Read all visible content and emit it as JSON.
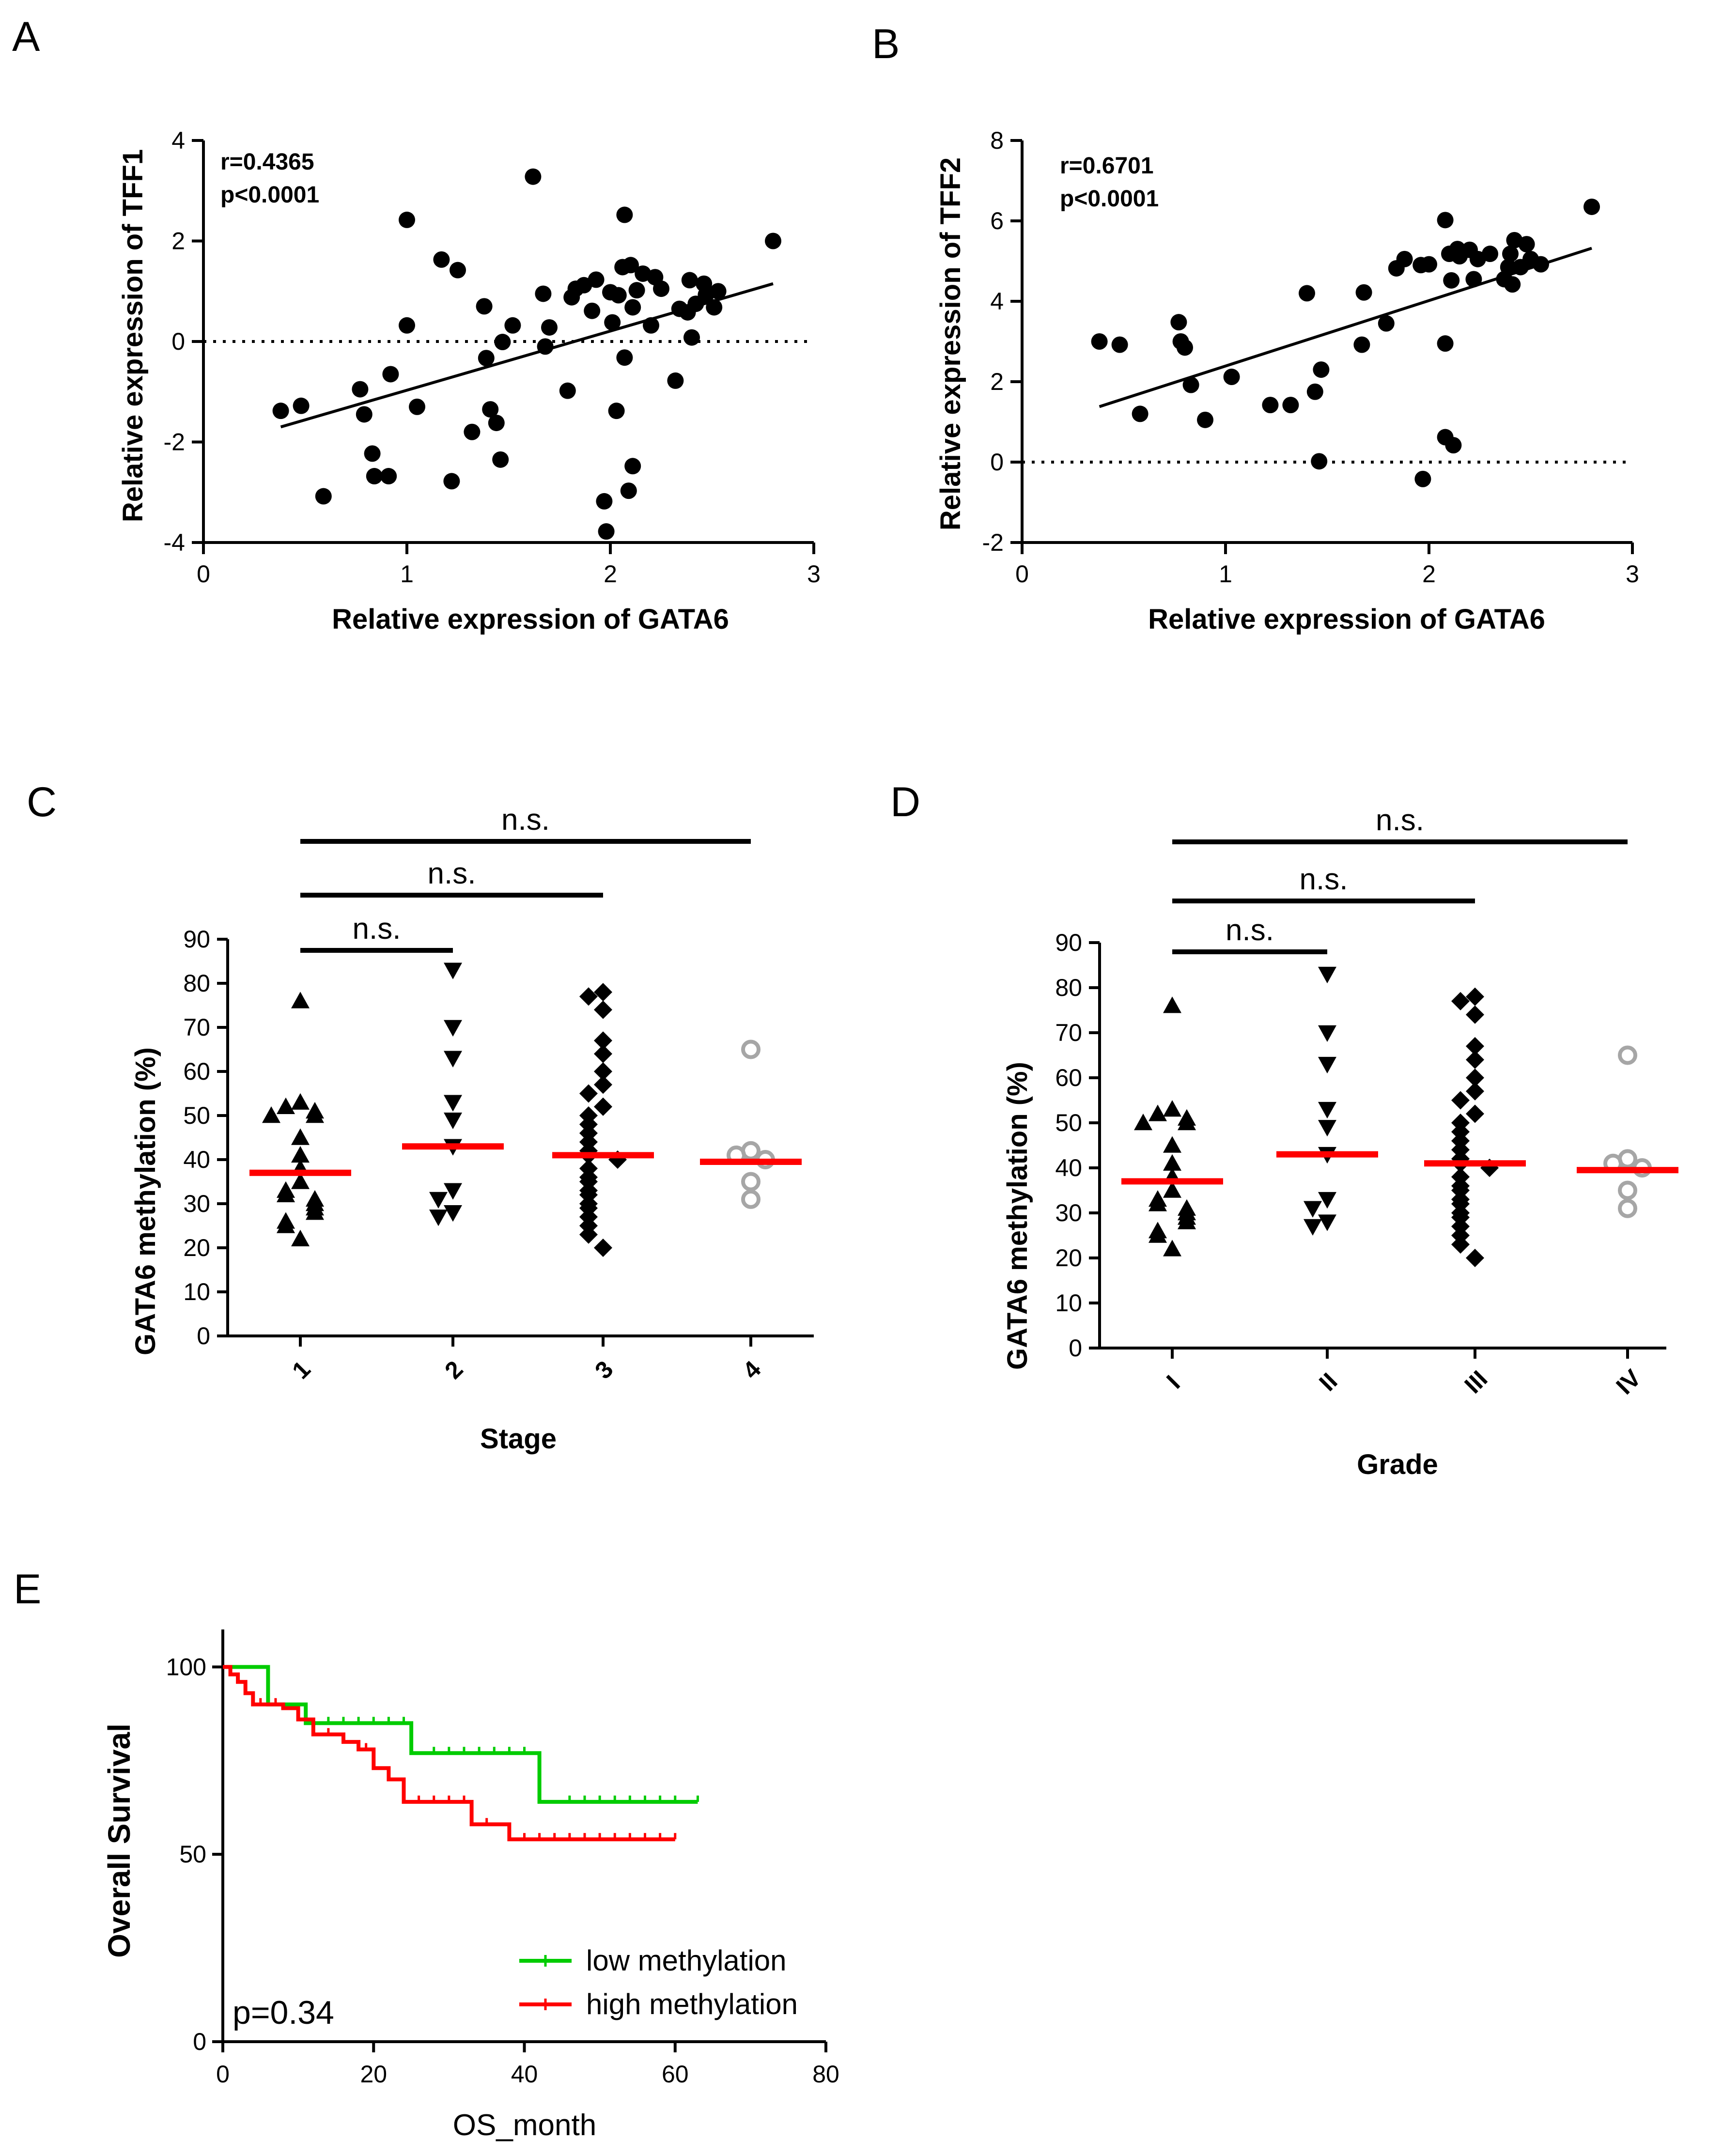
{
  "colors": {
    "axis": "#000000",
    "point": "#000000",
    "mean": "#ff0000",
    "stage4": "#a6a6a6",
    "low": "#00cc00",
    "high": "#ff0000"
  },
  "chart_data": [
    {
      "id": "A",
      "type": "scatter",
      "panel_label": "A",
      "xlabel": "Relative expression of GATA6",
      "ylabel": "Relative expression of TFF1",
      "xlim": [
        0,
        3
      ],
      "ylim": [
        -4,
        4
      ],
      "xticks": [
        "0",
        "1",
        "2",
        "3"
      ],
      "yticks": [
        "-4",
        "-2",
        "0",
        "2",
        "4"
      ],
      "stat_r": "r=0.4365",
      "stat_p": "p<0.0001",
      "reference_line": 0,
      "fit_line": {
        "x": [
          0.38,
          2.8
        ],
        "y": [
          -1.7,
          1.15
        ]
      },
      "points": [
        [
          0.38,
          -1.38
        ],
        [
          0.48,
          -1.28
        ],
        [
          0.59,
          -3.08
        ],
        [
          0.77,
          -0.95
        ],
        [
          0.79,
          -1.45
        ],
        [
          0.83,
          -2.23
        ],
        [
          0.84,
          -2.68
        ],
        [
          0.91,
          -2.68
        ],
        [
          0.92,
          -0.65
        ],
        [
          1.0,
          2.42
        ],
        [
          1.0,
          0.32
        ],
        [
          1.05,
          -1.3
        ],
        [
          1.17,
          1.63
        ],
        [
          1.22,
          -2.78
        ],
        [
          1.25,
          1.42
        ],
        [
          1.32,
          -1.8
        ],
        [
          1.38,
          0.7
        ],
        [
          1.39,
          -0.33
        ],
        [
          1.41,
          -1.35
        ],
        [
          1.44,
          -1.62
        ],
        [
          1.46,
          -2.35
        ],
        [
          1.47,
          -0.01
        ],
        [
          1.52,
          0.32
        ],
        [
          1.62,
          3.28
        ],
        [
          1.67,
          0.95
        ],
        [
          1.68,
          -0.1
        ],
        [
          1.7,
          0.28
        ],
        [
          1.79,
          -0.98
        ],
        [
          1.81,
          0.88
        ],
        [
          1.83,
          1.05
        ],
        [
          1.87,
          1.12
        ],
        [
          1.91,
          0.61
        ],
        [
          1.93,
          1.23
        ],
        [
          1.97,
          -3.18
        ],
        [
          1.98,
          -3.78
        ],
        [
          2.0,
          0.98
        ],
        [
          2.01,
          0.38
        ],
        [
          2.03,
          -1.38
        ],
        [
          2.04,
          0.92
        ],
        [
          2.06,
          1.48
        ],
        [
          2.07,
          2.52
        ],
        [
          2.07,
          -0.32
        ],
        [
          2.09,
          -2.97
        ],
        [
          2.1,
          1.52
        ],
        [
          2.11,
          -2.48
        ],
        [
          2.11,
          0.68
        ],
        [
          2.13,
          1.02
        ],
        [
          2.16,
          1.35
        ],
        [
          2.2,
          0.32
        ],
        [
          2.22,
          1.28
        ],
        [
          2.25,
          1.05
        ],
        [
          2.32,
          -0.78
        ],
        [
          2.34,
          0.65
        ],
        [
          2.38,
          0.58
        ],
        [
          2.39,
          1.22
        ],
        [
          2.4,
          0.08
        ],
        [
          2.42,
          0.75
        ],
        [
          2.46,
          1.15
        ],
        [
          2.47,
          0.93
        ],
        [
          2.51,
          0.68
        ],
        [
          2.53,
          1.0
        ],
        [
          2.8,
          2.0
        ]
      ]
    },
    {
      "id": "B",
      "type": "scatter",
      "panel_label": "B",
      "xlabel": "Relative expression of GATA6",
      "ylabel": "Relative expression of TFF2",
      "xlim": [
        0,
        3
      ],
      "ylim": [
        -2,
        8
      ],
      "xticks": [
        "0",
        "1",
        "2",
        "3"
      ],
      "yticks": [
        "-2",
        "0",
        "2",
        "4",
        "6",
        "8"
      ],
      "stat_r": "r=0.6701",
      "stat_p": "p<0.0001",
      "reference_line": 0,
      "fit_line": {
        "x": [
          0.38,
          2.8
        ],
        "y": [
          1.38,
          5.32
        ]
      },
      "points": [
        [
          0.38,
          3.0
        ],
        [
          0.48,
          2.92
        ],
        [
          0.58,
          1.2
        ],
        [
          0.77,
          3.48
        ],
        [
          0.78,
          3.0
        ],
        [
          0.8,
          2.85
        ],
        [
          0.83,
          1.92
        ],
        [
          0.9,
          1.05
        ],
        [
          1.03,
          2.12
        ],
        [
          1.22,
          1.42
        ],
        [
          1.32,
          1.42
        ],
        [
          1.4,
          4.2
        ],
        [
          1.44,
          1.75
        ],
        [
          1.46,
          0.02
        ],
        [
          1.47,
          2.3
        ],
        [
          1.67,
          2.92
        ],
        [
          1.68,
          4.22
        ],
        [
          1.79,
          3.45
        ],
        [
          1.84,
          4.82
        ],
        [
          1.88,
          5.05
        ],
        [
          1.96,
          4.9
        ],
        [
          1.97,
          -0.42
        ],
        [
          2.0,
          4.92
        ],
        [
          2.08,
          6.02
        ],
        [
          2.08,
          2.95
        ],
        [
          2.08,
          0.62
        ],
        [
          2.1,
          5.18
        ],
        [
          2.11,
          4.52
        ],
        [
          2.12,
          0.42
        ],
        [
          2.14,
          5.3
        ],
        [
          2.15,
          5.12
        ],
        [
          2.2,
          5.28
        ],
        [
          2.22,
          4.55
        ],
        [
          2.24,
          5.05
        ],
        [
          2.3,
          5.18
        ],
        [
          2.37,
          4.55
        ],
        [
          2.39,
          4.85
        ],
        [
          2.4,
          5.18
        ],
        [
          2.41,
          4.42
        ],
        [
          2.42,
          5.52
        ],
        [
          2.45,
          4.85
        ],
        [
          2.48,
          5.42
        ],
        [
          2.5,
          5.05
        ],
        [
          2.55,
          4.92
        ],
        [
          2.8,
          6.35
        ]
      ]
    },
    {
      "id": "C",
      "type": "dot",
      "panel_label": "C",
      "xlabel": "Stage",
      "ylabel": "GATA6 methylation (%)",
      "ylim": [
        0,
        90
      ],
      "yticks": [
        "0",
        "10",
        "20",
        "30",
        "40",
        "50",
        "60",
        "70",
        "80",
        "90"
      ],
      "groups": [
        {
          "label": "1",
          "marker": "triangle-up",
          "mean": 37,
          "values": [
            76,
            53,
            52,
            51,
            50,
            50,
            45,
            41,
            38,
            35,
            33,
            32,
            31,
            30,
            29,
            28,
            26,
            25,
            22
          ]
        },
        {
          "label": "2",
          "marker": "triangle-down",
          "mean": 43,
          "values": [
            83,
            70,
            63,
            53,
            49,
            43,
            33,
            31,
            28,
            27
          ]
        },
        {
          "label": "3",
          "marker": "diamond",
          "mean": 41,
          "values": [
            78,
            77,
            74,
            67,
            64,
            60,
            57,
            55,
            52,
            50,
            48,
            46,
            44,
            42,
            41,
            40,
            38,
            36,
            35,
            33,
            32,
            30,
            29,
            27,
            25,
            23,
            20
          ]
        },
        {
          "label": "4",
          "marker": "circle-open",
          "mean": 39.5,
          "values": [
            65,
            42,
            41,
            40,
            35,
            31
          ]
        }
      ],
      "comparisons": [
        {
          "from": 0,
          "to": 1,
          "label": "n.s."
        },
        {
          "from": 0,
          "to": 2,
          "label": "n.s."
        },
        {
          "from": 0,
          "to": 3,
          "label": "n.s."
        }
      ]
    },
    {
      "id": "D",
      "type": "dot",
      "panel_label": "D",
      "xlabel": "Grade",
      "ylabel": "GATA6 methylation (%)",
      "ylim": [
        0,
        90
      ],
      "yticks": [
        "0",
        "10",
        "20",
        "30",
        "40",
        "50",
        "60",
        "70",
        "80",
        "90"
      ],
      "groups": [
        {
          "label": "I",
          "marker": "triangle-up",
          "mean": 37,
          "values": [
            76,
            53,
            52,
            51,
            50,
            50,
            45,
            41,
            38,
            35,
            33,
            32,
            31,
            30,
            29,
            28,
            26,
            25,
            22
          ]
        },
        {
          "label": "II",
          "marker": "triangle-down",
          "mean": 43,
          "values": [
            83,
            70,
            63,
            53,
            49,
            43,
            33,
            31,
            28,
            27
          ]
        },
        {
          "label": "III",
          "marker": "diamond",
          "mean": 41,
          "values": [
            78,
            77,
            74,
            67,
            64,
            60,
            57,
            55,
            52,
            50,
            48,
            46,
            44,
            42,
            41,
            40,
            38,
            36,
            35,
            33,
            32,
            30,
            29,
            27,
            25,
            23,
            20
          ]
        },
        {
          "label": "IV",
          "marker": "circle-open",
          "mean": 39.5,
          "values": [
            65,
            42,
            41,
            40,
            35,
            31
          ]
        }
      ],
      "comparisons": [
        {
          "from": 0,
          "to": 1,
          "label": "n.s."
        },
        {
          "from": 0,
          "to": 2,
          "label": "n.s."
        },
        {
          "from": 0,
          "to": 3,
          "label": "n.s."
        }
      ]
    },
    {
      "id": "E",
      "type": "line",
      "panel_label": "E",
      "xlabel": "OS_month",
      "ylabel": "Overall Survival",
      "xlim": [
        0,
        80
      ],
      "ylim": [
        0,
        110
      ],
      "xticks": [
        "0",
        "20",
        "40",
        "60",
        "80"
      ],
      "yticks": [
        "0",
        "50",
        "100"
      ],
      "pvalue": "p=0.34",
      "series": [
        {
          "name": "low methylation",
          "color_key": "low",
          "steps": [
            [
              0,
              100
            ],
            [
              6,
              100
            ],
            [
              6,
              90
            ],
            [
              11,
              90
            ],
            [
              11,
              85
            ],
            [
              25,
              85
            ],
            [
              25,
              77
            ],
            [
              42,
              77
            ],
            [
              42,
              64
            ],
            [
              63,
              64
            ]
          ],
          "censors": [
            14,
            16,
            18,
            20,
            22,
            24,
            28,
            30,
            32,
            34,
            36,
            38,
            40,
            46,
            48,
            50,
            52,
            54,
            56,
            58,
            60,
            63
          ]
        },
        {
          "name": "high methylation",
          "color_key": "high",
          "steps": [
            [
              0,
              100
            ],
            [
              1,
              100
            ],
            [
              1,
              98
            ],
            [
              2,
              98
            ],
            [
              2,
              96
            ],
            [
              3,
              96
            ],
            [
              3,
              93
            ],
            [
              4,
              93
            ],
            [
              4,
              90
            ],
            [
              8,
              90
            ],
            [
              8,
              89
            ],
            [
              10,
              89
            ],
            [
              10,
              86
            ],
            [
              12,
              86
            ],
            [
              12,
              82
            ],
            [
              16,
              82
            ],
            [
              16,
              80
            ],
            [
              18,
              80
            ],
            [
              18,
              78
            ],
            [
              20,
              78
            ],
            [
              20,
              73
            ],
            [
              22,
              73
            ],
            [
              22,
              70
            ],
            [
              24,
              70
            ],
            [
              24,
              64
            ],
            [
              33,
              64
            ],
            [
              33,
              58
            ],
            [
              38,
              58
            ],
            [
              38,
              54
            ],
            [
              60,
              54
            ]
          ],
          "censors": [
            5,
            7,
            14,
            19,
            26,
            28,
            30,
            32,
            35,
            40,
            42,
            44,
            46,
            48,
            50,
            52,
            54,
            56,
            58,
            60
          ]
        }
      ]
    }
  ]
}
